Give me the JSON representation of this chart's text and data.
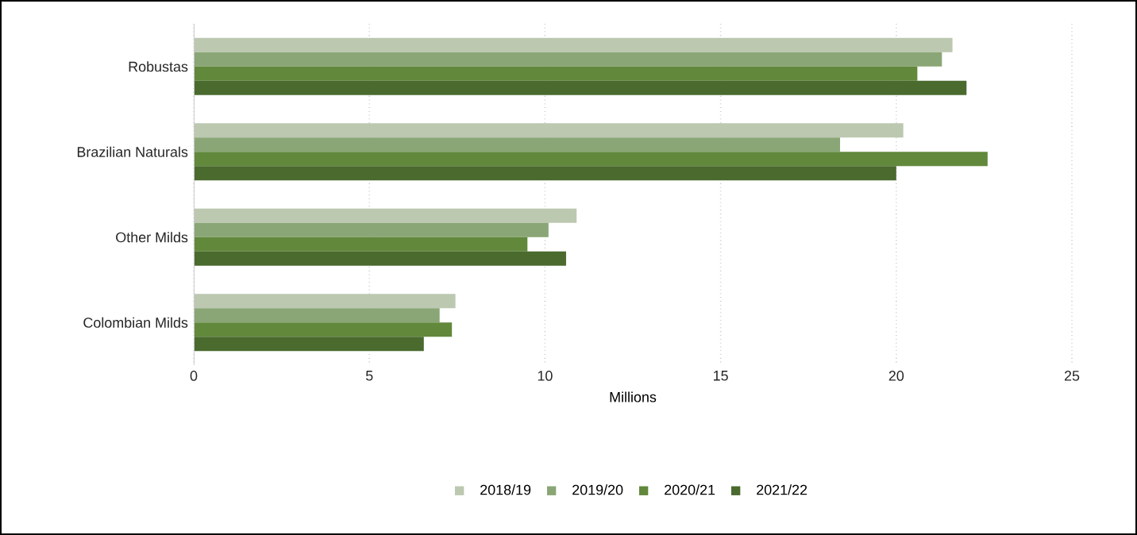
{
  "chart_data": {
    "type": "bar",
    "orientation": "horizontal",
    "xlabel": "Millions",
    "categories": [
      "Robustas",
      "Brazilian Naturals",
      "Other Milds",
      "Colombian Milds"
    ],
    "series": [
      {
        "name": "2018/19",
        "color": "#bcc8b0",
        "values": [
          21.6,
          20.2,
          10.9,
          7.45
        ]
      },
      {
        "name": "2019/20",
        "color": "#8aa676",
        "values": [
          21.3,
          18.4,
          10.1,
          7.0
        ]
      },
      {
        "name": "2020/21",
        "color": "#62883c",
        "values": [
          20.6,
          22.6,
          9.5,
          7.35
        ]
      },
      {
        "name": "2021/22",
        "color": "#4a6a2e",
        "values": [
          22.0,
          20.0,
          10.6,
          6.55
        ]
      }
    ],
    "xlim": [
      0,
      25
    ],
    "xticks": [
      0,
      5,
      10,
      15,
      20,
      25
    ],
    "grid": "x",
    "legend": "bottom"
  }
}
